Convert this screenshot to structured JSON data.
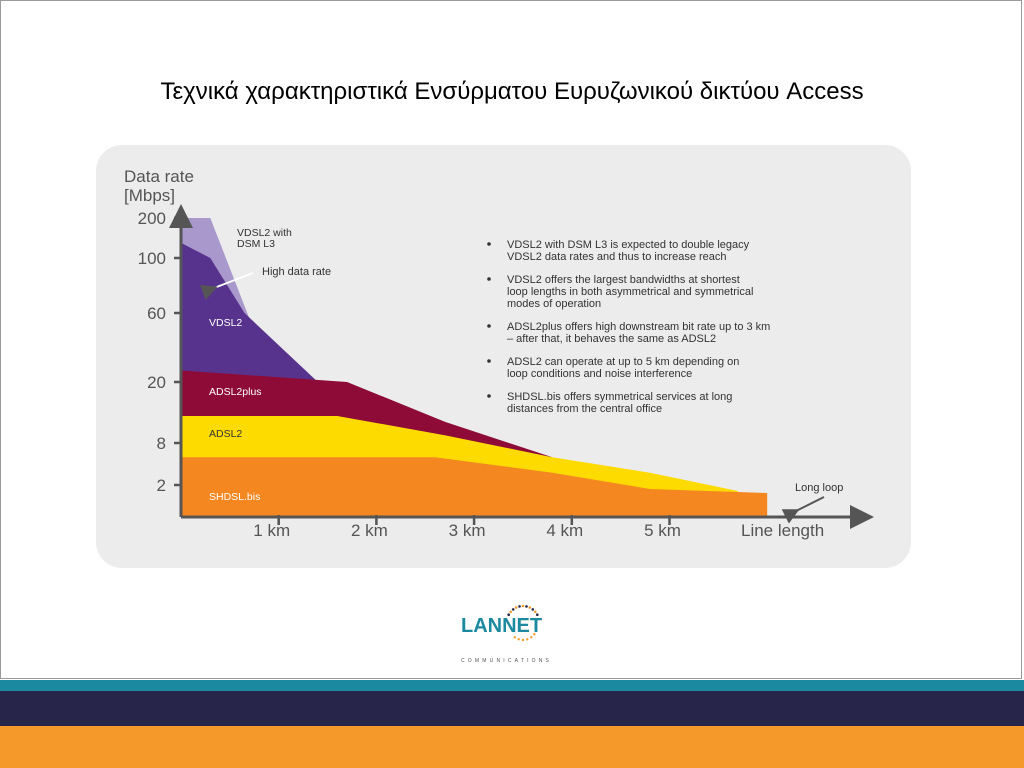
{
  "slide": {
    "title": "Τεχνικά χαρακτηριστικά Ενσύρματου Ευρυζωνικού δικτύου Access"
  },
  "chart_data": {
    "type": "area",
    "ylabel_lines": [
      "Data rate",
      "[Mbps]"
    ],
    "xlabel": "Line length",
    "y_ticks": [
      "200",
      "100",
      "60",
      "20",
      "8",
      "2"
    ],
    "x_ticks": [
      "1 km",
      "2 km",
      "3 km",
      "4 km",
      "5 km"
    ],
    "xlim": [
      0,
      7
    ],
    "y_scale": "log-like (non-linear)",
    "series": [
      {
        "name": "VDSL2 with DSM L3",
        "label_lines": [
          "VDSL2 with",
          "DSM L3"
        ],
        "color": "#a898cc",
        "points": [
          [
            0,
            200
          ],
          [
            0.3,
            200
          ],
          [
            0.7,
            55
          ],
          [
            1.4,
            20
          ]
        ]
      },
      {
        "name": "VDSL2",
        "label_lines": [
          "VDSL2"
        ],
        "color": "#57338d",
        "points": [
          [
            0,
            130
          ],
          [
            0.3,
            100
          ],
          [
            0.65,
            60
          ],
          [
            1.4,
            20
          ]
        ]
      },
      {
        "name": "ADSL2plus",
        "label_lines": [
          "ADSL2plus"
        ],
        "color": "#8e0b37",
        "points": [
          [
            0,
            24
          ],
          [
            1.7,
            20
          ],
          [
            2.7,
            11
          ],
          [
            3.8,
            5
          ]
        ]
      },
      {
        "name": "ADSL2",
        "label_lines": [
          "ADSL2"
        ],
        "color": "#fddb00",
        "points": [
          [
            0,
            12
          ],
          [
            1.6,
            12
          ],
          [
            2.7,
            9
          ],
          [
            3.8,
            5
          ],
          [
            4.8,
            3
          ],
          [
            5.7,
            1.7
          ]
        ]
      },
      {
        "name": "SHDSL.bis",
        "label_lines": [
          "SHDSL.bis"
        ],
        "color": "#f58720",
        "points": [
          [
            0,
            5
          ],
          [
            2.6,
            5
          ],
          [
            3.8,
            3
          ],
          [
            4.8,
            1.8
          ],
          [
            6.0,
            1.6
          ]
        ]
      }
    ],
    "annotations": {
      "high_data_rate": "High data rate",
      "long_loop": "Long loop"
    },
    "bullets": [
      [
        "VDSL2 with DSM L3 is expected to double legacy",
        "VDSL2 data rates and thus to increase reach"
      ],
      [
        "VDSL2 offers the largest bandwidths at shortest",
        "loop lengths in both asymmetrical and symmetrical",
        "modes of operation"
      ],
      [
        "ADSL2plus offers high downstream bit rate up to 3 km",
        "– after that, it behaves the same as ADSL2"
      ],
      [
        "ADSL2 can operate at up to 5 km depending on",
        "loop conditions and noise interference"
      ],
      [
        "SHDSL.bis offers symmetrical services at long",
        "distances from the central office"
      ]
    ]
  },
  "logo": {
    "name": "LANNET",
    "tagline": "COMMUNICATIONS",
    "colors": {
      "lan": "#1b8aa0",
      "net": "#27264a",
      "dots": "#f59a2a"
    }
  }
}
